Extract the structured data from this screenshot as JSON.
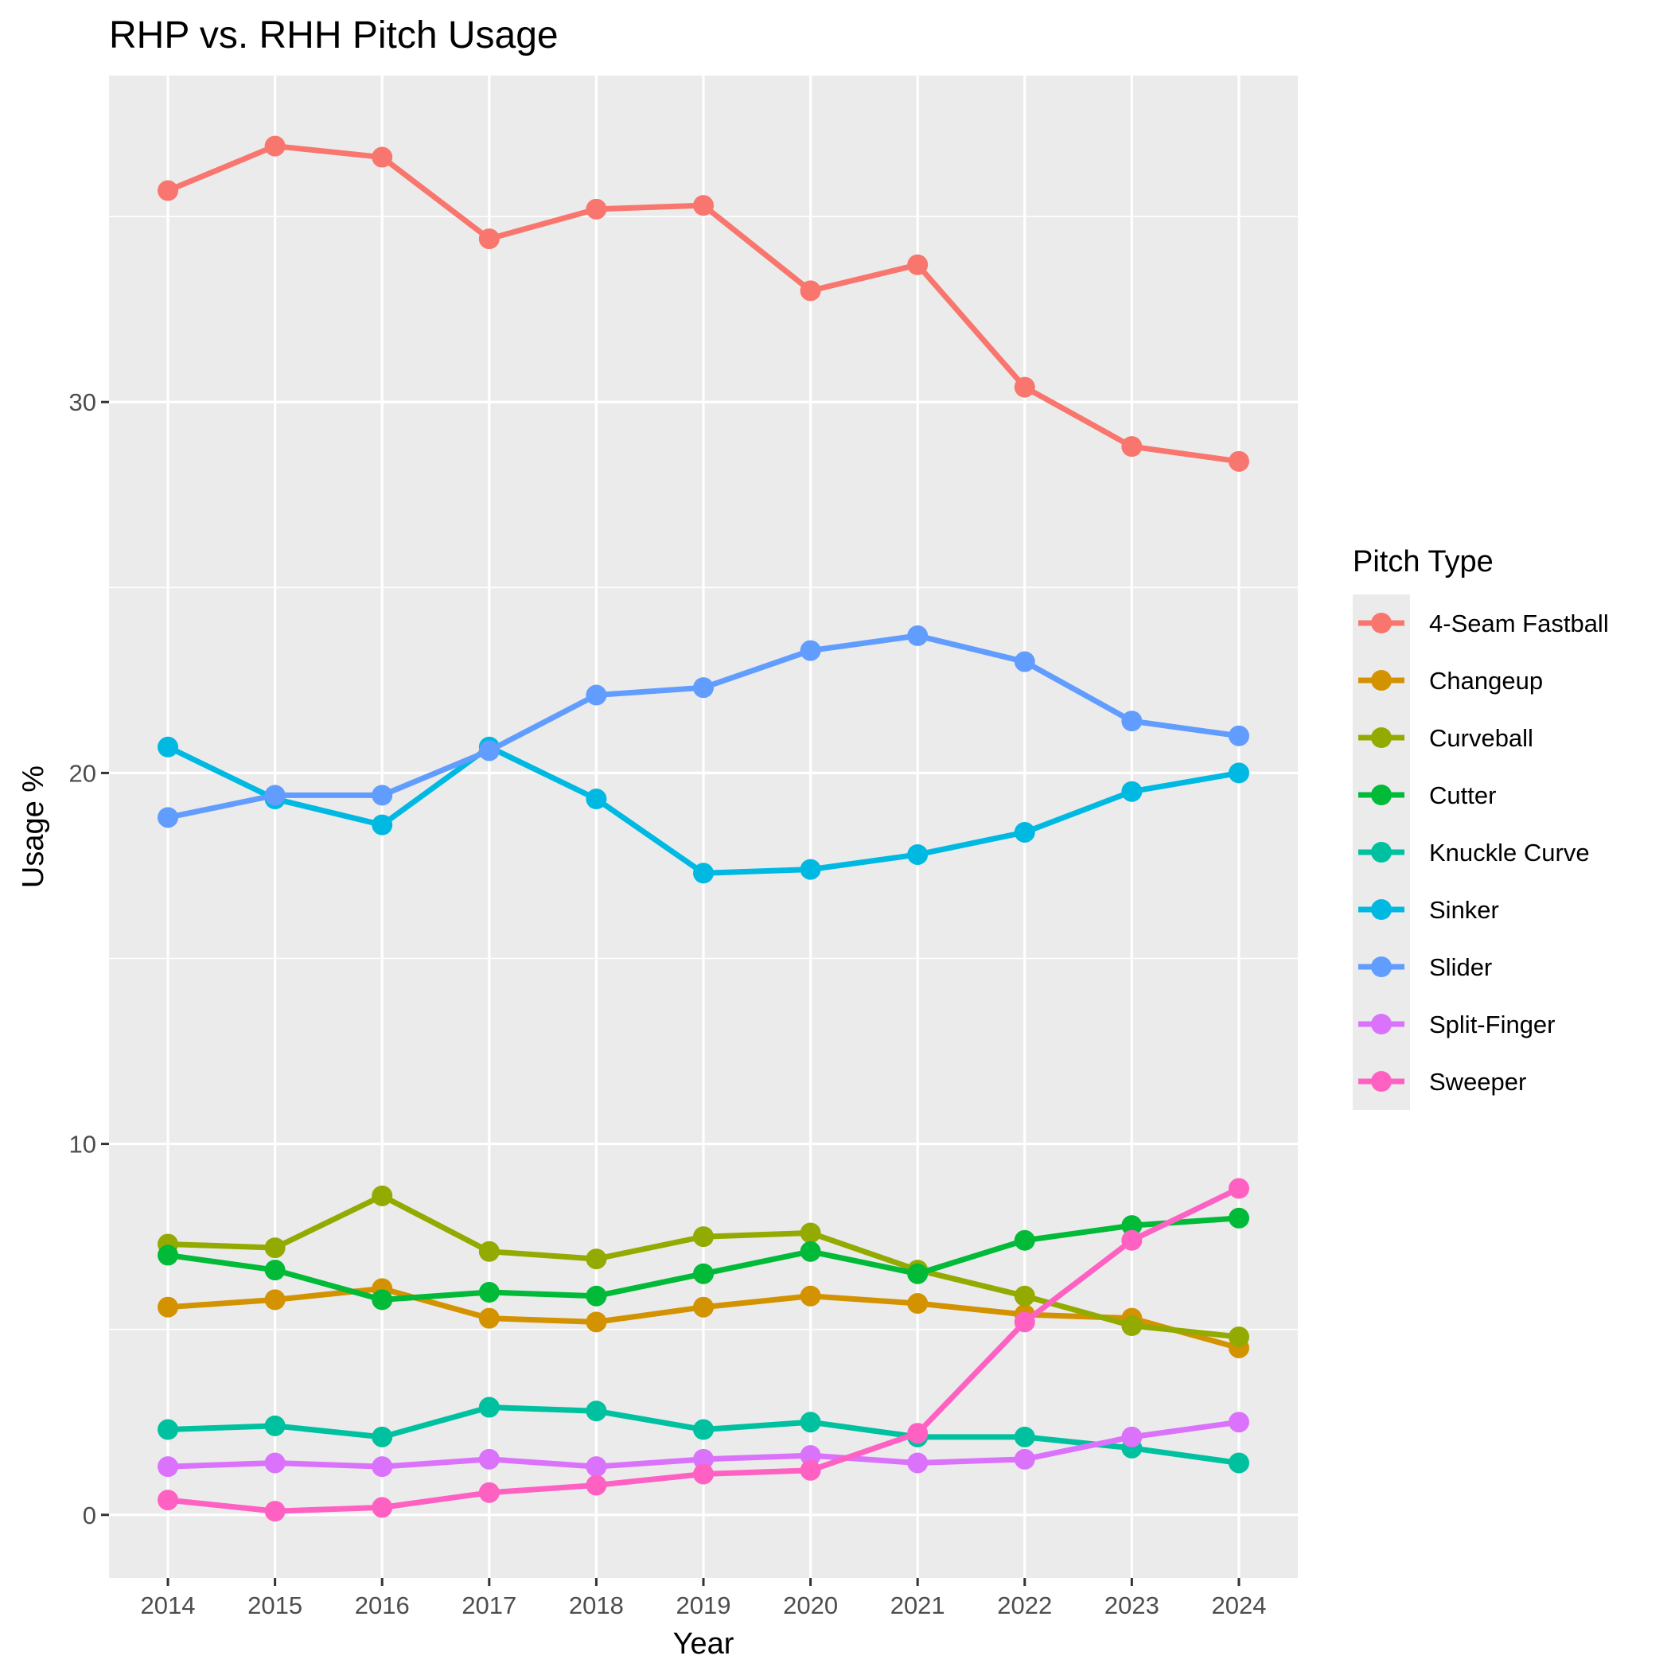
{
  "chart_data": {
    "type": "line",
    "title": "RHP vs. RHH Pitch Usage",
    "xlabel": "Year",
    "ylabel": "Usage %",
    "legend_title": "Pitch Type",
    "legend_position": "right",
    "grid": true,
    "x": [
      2014,
      2015,
      2016,
      2017,
      2018,
      2019,
      2020,
      2021,
      2022,
      2023,
      2024
    ],
    "x_ticks": [
      "2014",
      "2015",
      "2016",
      "2017",
      "2018",
      "2019",
      "2020",
      "2021",
      "2022",
      "2023",
      "2024"
    ],
    "ylim": [
      -1.7,
      38.8
    ],
    "y_ticks": [
      0,
      10,
      20,
      30
    ],
    "y_tick_labels": [
      "0",
      "10",
      "20",
      "30"
    ],
    "series": [
      {
        "name": "4-Seam Fastball",
        "color": "#F8766D",
        "values": [
          35.7,
          36.9,
          36.6,
          34.4,
          35.2,
          35.3,
          33.0,
          33.7,
          30.4,
          28.8,
          28.4
        ]
      },
      {
        "name": "Changeup",
        "color": "#D39200",
        "values": [
          5.6,
          5.8,
          6.1,
          5.3,
          5.2,
          5.6,
          5.9,
          5.7,
          5.4,
          5.3,
          4.5
        ]
      },
      {
        "name": "Curveball",
        "color": "#93AA00",
        "values": [
          7.3,
          7.2,
          8.6,
          7.1,
          6.9,
          7.5,
          7.6,
          6.6,
          5.9,
          5.1,
          4.8
        ]
      },
      {
        "name": "Cutter",
        "color": "#00BA38",
        "values": [
          7.0,
          6.6,
          5.8,
          6.0,
          5.9,
          6.5,
          7.1,
          6.5,
          7.4,
          7.8,
          8.0
        ]
      },
      {
        "name": "Knuckle Curve",
        "color": "#00C19F",
        "values": [
          2.3,
          2.4,
          2.1,
          2.9,
          2.8,
          2.3,
          2.5,
          2.1,
          2.1,
          1.8,
          1.4
        ]
      },
      {
        "name": "Sinker",
        "color": "#00B9E3",
        "values": [
          20.7,
          19.3,
          18.6,
          20.7,
          19.3,
          17.3,
          17.4,
          17.8,
          18.4,
          19.5,
          20.0
        ]
      },
      {
        "name": "Slider",
        "color": "#619CFF",
        "values": [
          18.8,
          19.4,
          19.4,
          20.6,
          22.1,
          22.3,
          23.3,
          23.7,
          23.0,
          21.4,
          21.0
        ]
      },
      {
        "name": "Split-Finger",
        "color": "#DB72FB",
        "values": [
          1.3,
          1.4,
          1.3,
          1.5,
          1.3,
          1.5,
          1.6,
          1.4,
          1.5,
          2.1,
          2.5
        ]
      },
      {
        "name": "Sweeper",
        "color": "#FF61C3",
        "values": [
          0.4,
          0.1,
          0.2,
          0.6,
          0.8,
          1.1,
          1.2,
          2.2,
          5.2,
          7.4,
          8.8
        ]
      }
    ]
  }
}
